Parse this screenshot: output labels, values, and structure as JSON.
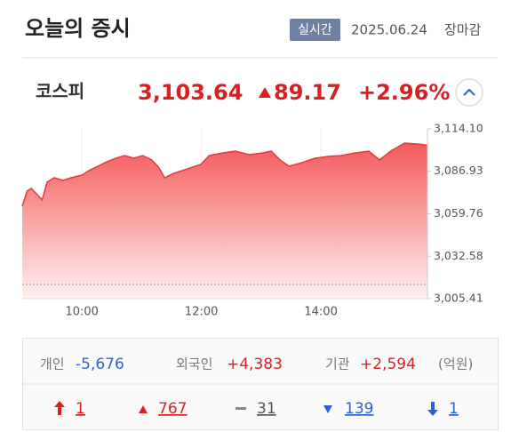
{
  "header": {
    "title": "오늘의 증시",
    "badge": "실시간",
    "date": "2025.06.24",
    "status": "장마감"
  },
  "index": {
    "name": "코스피",
    "value": "3,103.64",
    "change": "89.17",
    "change_pct": "+2.96%"
  },
  "chart_data": {
    "type": "area",
    "color": "#e8383a",
    "x": [
      540,
      545,
      549,
      556,
      560,
      565,
      572,
      581,
      589,
      600,
      607,
      616,
      625,
      634,
      643,
      652,
      661,
      670,
      677,
      683,
      692,
      706,
      719,
      728,
      741,
      754,
      768,
      781,
      790,
      799,
      808,
      821,
      834,
      848,
      861,
      874,
      888,
      899,
      910,
      924,
      937,
      947
    ],
    "values": [
      3064.6,
      3074.3,
      3076.0,
      3071.4,
      3068.6,
      3080.0,
      3082.8,
      3081.1,
      3082.8,
      3084.5,
      3087.4,
      3090.2,
      3093.0,
      3095.3,
      3097.0,
      3095.3,
      3097.0,
      3094.2,
      3089.6,
      3082.8,
      3085.6,
      3088.5,
      3091.3,
      3097.0,
      3098.7,
      3099.9,
      3097.6,
      3098.7,
      3099.9,
      3094.2,
      3090.2,
      3092.5,
      3095.3,
      3096.5,
      3097.0,
      3098.7,
      3099.9,
      3094.2,
      3099.9,
      3105.0,
      3104.4,
      3103.64
    ],
    "xlim": [
      540,
      947
    ],
    "xticks": [
      {
        "value": 600,
        "label": "10:00"
      },
      {
        "value": 720,
        "label": "12:00"
      },
      {
        "value": 840,
        "label": "14:00"
      }
    ],
    "ylim": [
      3005.41,
      3114.1
    ],
    "yticks": [
      {
        "value": 3005.41,
        "label": "3,005.41"
      },
      {
        "value": 3032.58,
        "label": "3,032.58"
      },
      {
        "value": 3059.76,
        "label": "3,059.76"
      },
      {
        "value": 3086.93,
        "label": "3,086.93"
      },
      {
        "value": 3114.1,
        "label": "3,114.10"
      }
    ],
    "reference_line": 3014.47,
    "grid": true
  },
  "investors": {
    "items": [
      {
        "label": "개인",
        "value": "-5,676"
      },
      {
        "label": "외국인",
        "value": "+4,383"
      },
      {
        "label": "기관",
        "value": "+2,594"
      }
    ],
    "unit": "(억원)"
  },
  "breadth": [
    "1",
    "767",
    "31",
    "139",
    "1"
  ]
}
